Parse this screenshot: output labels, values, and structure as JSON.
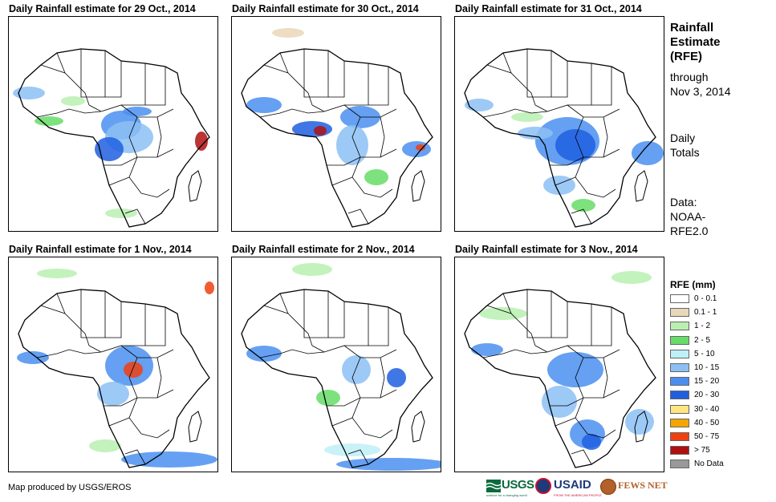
{
  "panels": [
    {
      "title": "Daily Rainfall estimate for 29 Oct., 2014"
    },
    {
      "title": "Daily Rainfall estimate for 30 Oct., 2014"
    },
    {
      "title": "Daily Rainfall estimate for 31 Oct., 2014"
    },
    {
      "title": "Daily Rainfall estimate for 1 Nov., 2014"
    },
    {
      "title": "Daily Rainfall estimate for 2 Nov., 2014"
    },
    {
      "title": "Daily Rainfall estimate for 3 Nov., 2014"
    }
  ],
  "sidebar": {
    "title_line1": "Rainfall",
    "title_line2": "Estimate",
    "title_line3": "(RFE)",
    "through_line1": "through",
    "through_line2": "Nov 3, 2014",
    "daily_line1": "Daily",
    "daily_line2": "Totals",
    "data_line1": "Data:",
    "data_line2": "NOAA-",
    "data_line3": "RFE2.0"
  },
  "legend": {
    "title": "RFE (mm)",
    "items": [
      {
        "label": "0 - 0.1",
        "color": "#ffffff"
      },
      {
        "label": "0.1 - 1",
        "color": "#e9d7b9"
      },
      {
        "label": "1 - 2",
        "color": "#b9f0b0"
      },
      {
        "label": "2 - 5",
        "color": "#66dd66"
      },
      {
        "label": "5 - 10",
        "color": "#bfeff7"
      },
      {
        "label": "10 - 15",
        "color": "#8cc0f5"
      },
      {
        "label": "15 - 20",
        "color": "#4a8ff0"
      },
      {
        "label": "20 - 30",
        "color": "#1f5fe0"
      },
      {
        "label": "30 - 40",
        "color": "#ffe680"
      },
      {
        "label": "40 - 50",
        "color": "#f5a500"
      },
      {
        "label": "50 - 75",
        "color": "#f04010"
      },
      {
        "label": "> 75",
        "color": "#b01010"
      },
      {
        "label": "No Data",
        "color": "#999999"
      }
    ]
  },
  "credit": "Map produced by USGS/EROS",
  "logos": {
    "usgs": "USGS",
    "usgs_tagline": "science for a changing world",
    "usaid": "USAID",
    "usaid_tagline": "FROM THE AMERICAN PEOPLE",
    "fewsnet": "FEWS NET"
  }
}
